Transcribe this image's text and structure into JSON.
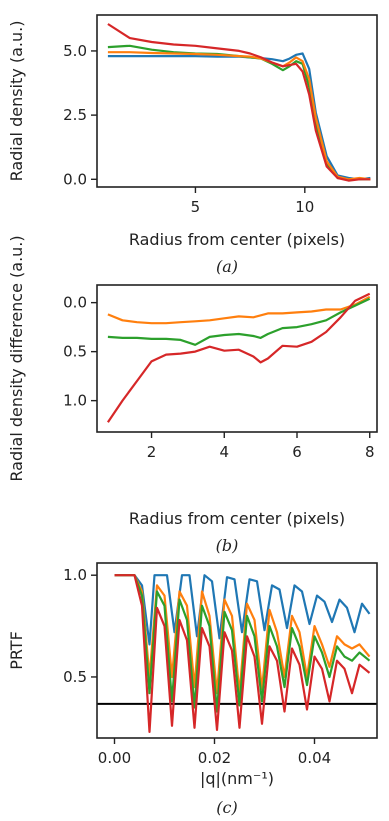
{
  "chart_data": [
    {
      "type": "line",
      "panel_label": "(a)",
      "xlabel": "Radius from center (pixels)",
      "ylabel": "Radial density (a.u.)",
      "xlim": [
        0.5,
        13.3
      ],
      "ylim": [
        -0.3,
        6.4
      ],
      "xticks": [
        5,
        10
      ],
      "xtick_labels": [
        "5",
        "10"
      ],
      "yticks": [
        0.0,
        2.5,
        5.0
      ],
      "ytick_labels": [
        "0.0",
        "2.5",
        "5.0"
      ],
      "grid": false,
      "series": [
        {
          "color": "#1f77b4",
          "x": [
            1,
            2,
            3,
            4,
            5,
            6,
            7,
            7.5,
            8,
            8.5,
            9,
            9.3,
            9.6,
            9.9,
            10.2,
            10.5,
            11,
            11.5,
            12,
            12.5,
            13
          ],
          "y": [
            4.8,
            4.8,
            4.8,
            4.8,
            4.8,
            4.78,
            4.78,
            4.75,
            4.72,
            4.68,
            4.6,
            4.7,
            4.85,
            4.9,
            4.3,
            2.6,
            0.9,
            0.15,
            0.05,
            0.0,
            0.05
          ]
        },
        {
          "color": "#2ca02c",
          "x": [
            1,
            2,
            3,
            4,
            5,
            6,
            7,
            7.5,
            8,
            8.5,
            9,
            9.3,
            9.6,
            9.9,
            10.2,
            10.5,
            11,
            11.5,
            12,
            12.5,
            13
          ],
          "y": [
            5.15,
            5.2,
            5.05,
            4.95,
            4.9,
            4.88,
            4.8,
            4.75,
            4.7,
            4.5,
            4.25,
            4.4,
            4.6,
            4.5,
            3.6,
            2.2,
            0.6,
            0.05,
            0.0,
            0.0,
            0.0
          ]
        },
        {
          "color": "#ff7f0e",
          "x": [
            1,
            2,
            3,
            4,
            5,
            6,
            7,
            7.5,
            8,
            8.5,
            9,
            9.3,
            9.6,
            9.9,
            10.2,
            10.5,
            11,
            11.5,
            12,
            12.5,
            13
          ],
          "y": [
            4.95,
            4.95,
            4.92,
            4.9,
            4.88,
            4.85,
            4.8,
            4.78,
            4.7,
            4.55,
            4.4,
            4.55,
            4.75,
            4.6,
            3.9,
            2.4,
            0.7,
            0.1,
            0.0,
            0.05,
            0.0
          ]
        },
        {
          "color": "#d62728",
          "x": [
            1,
            2,
            3,
            4,
            5,
            6,
            7,
            7.5,
            8,
            8.5,
            9,
            9.3,
            9.6,
            9.9,
            10.2,
            10.5,
            11,
            11.5,
            12,
            12.5,
            13
          ],
          "y": [
            6.05,
            5.5,
            5.35,
            5.25,
            5.2,
            5.1,
            5.0,
            4.9,
            4.75,
            4.55,
            4.4,
            4.45,
            4.5,
            4.2,
            3.3,
            1.9,
            0.5,
            0.05,
            -0.05,
            0.0,
            0.0
          ]
        }
      ]
    },
    {
      "type": "line",
      "panel_label": "(b)",
      "xlabel": "Radius from center (pixels)",
      "ylabel": "Radial density difference (a.u.)",
      "xlim": [
        0.5,
        8.2
      ],
      "ylim": [
        1.32,
        -0.18
      ],
      "y_inverted": true,
      "xticks": [
        2,
        4,
        6,
        8
      ],
      "xtick_labels": [
        "2",
        "4",
        "6",
        "8"
      ],
      "yticks": [
        0.0,
        0.5,
        1.0
      ],
      "ytick_labels": [
        "0.0",
        "0.5",
        "1.0"
      ],
      "grid": false,
      "series": [
        {
          "color": "#ff7f0e",
          "x": [
            0.8,
            1.2,
            1.6,
            2.0,
            2.4,
            2.8,
            3.2,
            3.6,
            4.0,
            4.4,
            4.8,
            5.2,
            5.6,
            6.0,
            6.4,
            6.8,
            7.2,
            7.6,
            8.0
          ],
          "y": [
            0.12,
            0.18,
            0.2,
            0.21,
            0.21,
            0.2,
            0.19,
            0.18,
            0.16,
            0.14,
            0.15,
            0.11,
            0.11,
            0.1,
            0.09,
            0.07,
            0.07,
            0.02,
            -0.06
          ]
        },
        {
          "color": "#2ca02c",
          "x": [
            0.8,
            1.2,
            1.6,
            2.0,
            2.4,
            2.8,
            3.2,
            3.6,
            4.0,
            4.4,
            4.8,
            5.0,
            5.2,
            5.6,
            6.0,
            6.4,
            6.8,
            7.2,
            7.6,
            8.0
          ],
          "y": [
            0.35,
            0.36,
            0.36,
            0.37,
            0.37,
            0.38,
            0.43,
            0.35,
            0.33,
            0.32,
            0.34,
            0.36,
            0.32,
            0.26,
            0.25,
            0.22,
            0.18,
            0.1,
            0.03,
            -0.04
          ]
        },
        {
          "color": "#d62728",
          "x": [
            0.8,
            1.2,
            1.6,
            2.0,
            2.4,
            2.8,
            3.2,
            3.6,
            4.0,
            4.4,
            4.8,
            5.0,
            5.2,
            5.6,
            6.0,
            6.4,
            6.8,
            7.2,
            7.6,
            8.0
          ],
          "y": [
            1.22,
            1.0,
            0.8,
            0.6,
            0.53,
            0.52,
            0.5,
            0.45,
            0.49,
            0.48,
            0.55,
            0.61,
            0.57,
            0.44,
            0.45,
            0.4,
            0.3,
            0.15,
            -0.02,
            -0.09
          ]
        }
      ]
    },
    {
      "type": "line",
      "panel_label": "(c)",
      "xlabel": "|q|(nm⁻¹)",
      "ylabel": "PRTF",
      "xlim": [
        -0.0035,
        0.0525
      ],
      "ylim": [
        0.2,
        1.06
      ],
      "xticks": [
        0.0,
        0.02,
        0.04
      ],
      "xtick_labels": [
        "0.00",
        "0.02",
        "0.04"
      ],
      "yticks": [
        0.5,
        1.0
      ],
      "ytick_labels": [
        "0.5",
        "1.0"
      ],
      "threshold": 0.368,
      "grid": false,
      "series": [
        {
          "color": "#1f77b4",
          "x": [
            0,
            0.004,
            0.0055,
            0.007,
            0.008,
            0.009,
            0.0105,
            0.012,
            0.0135,
            0.015,
            0.0165,
            0.018,
            0.0195,
            0.021,
            0.0225,
            0.024,
            0.0255,
            0.027,
            0.0285,
            0.03,
            0.0315,
            0.033,
            0.0345,
            0.036,
            0.0375,
            0.039,
            0.0405,
            0.042,
            0.0435,
            0.045,
            0.0465,
            0.048,
            0.0495,
            0.051
          ],
          "y": [
            1.0,
            1.0,
            0.95,
            0.66,
            1.0,
            1.0,
            1.0,
            0.72,
            1.0,
            1.0,
            0.7,
            1.0,
            0.97,
            0.69,
            0.99,
            0.98,
            0.72,
            0.98,
            0.97,
            0.73,
            0.95,
            0.93,
            0.74,
            0.95,
            0.92,
            0.76,
            0.9,
            0.87,
            0.77,
            0.88,
            0.84,
            0.72,
            0.86,
            0.81
          ]
        },
        {
          "color": "#ff7f0e",
          "x": [
            0,
            0.004,
            0.0055,
            0.007,
            0.0085,
            0.01,
            0.0115,
            0.013,
            0.0145,
            0.016,
            0.0175,
            0.019,
            0.0205,
            0.022,
            0.0235,
            0.025,
            0.0265,
            0.028,
            0.0295,
            0.031,
            0.0325,
            0.034,
            0.0355,
            0.037,
            0.0385,
            0.04,
            0.0415,
            0.043,
            0.0445,
            0.046,
            0.0475,
            0.049,
            0.051
          ],
          "y": [
            1.0,
            1.0,
            0.92,
            0.5,
            0.95,
            0.9,
            0.5,
            0.92,
            0.85,
            0.45,
            0.92,
            0.8,
            0.42,
            0.88,
            0.8,
            0.42,
            0.86,
            0.78,
            0.44,
            0.83,
            0.72,
            0.5,
            0.8,
            0.72,
            0.5,
            0.75,
            0.66,
            0.55,
            0.7,
            0.66,
            0.64,
            0.66,
            0.6
          ]
        },
        {
          "color": "#2ca02c",
          "x": [
            0,
            0.004,
            0.0055,
            0.007,
            0.0085,
            0.01,
            0.0115,
            0.013,
            0.0145,
            0.016,
            0.0175,
            0.019,
            0.0205,
            0.022,
            0.0235,
            0.025,
            0.0265,
            0.028,
            0.0295,
            0.031,
            0.0325,
            0.034,
            0.0355,
            0.037,
            0.0385,
            0.04,
            0.0415,
            0.043,
            0.0445,
            0.046,
            0.0475,
            0.049,
            0.051
          ],
          "y": [
            1.0,
            1.0,
            0.9,
            0.42,
            0.92,
            0.85,
            0.38,
            0.88,
            0.78,
            0.35,
            0.85,
            0.75,
            0.33,
            0.82,
            0.73,
            0.36,
            0.8,
            0.7,
            0.38,
            0.75,
            0.65,
            0.45,
            0.74,
            0.65,
            0.46,
            0.7,
            0.62,
            0.5,
            0.65,
            0.6,
            0.58,
            0.62,
            0.58
          ]
        },
        {
          "color": "#d62728",
          "x": [
            0,
            0.004,
            0.0055,
            0.007,
            0.0085,
            0.01,
            0.0115,
            0.013,
            0.0145,
            0.016,
            0.0175,
            0.019,
            0.0205,
            0.022,
            0.0235,
            0.025,
            0.0265,
            0.028,
            0.0295,
            0.031,
            0.0325,
            0.034,
            0.0355,
            0.037,
            0.0385,
            0.04,
            0.0415,
            0.043,
            0.0445,
            0.046,
            0.0475,
            0.049,
            0.051
          ],
          "y": [
            1.0,
            1.0,
            0.85,
            0.23,
            0.84,
            0.75,
            0.26,
            0.78,
            0.68,
            0.25,
            0.74,
            0.65,
            0.24,
            0.72,
            0.63,
            0.25,
            0.7,
            0.6,
            0.27,
            0.65,
            0.58,
            0.33,
            0.64,
            0.56,
            0.34,
            0.6,
            0.54,
            0.38,
            0.58,
            0.54,
            0.42,
            0.56,
            0.52
          ]
        }
      ]
    }
  ]
}
